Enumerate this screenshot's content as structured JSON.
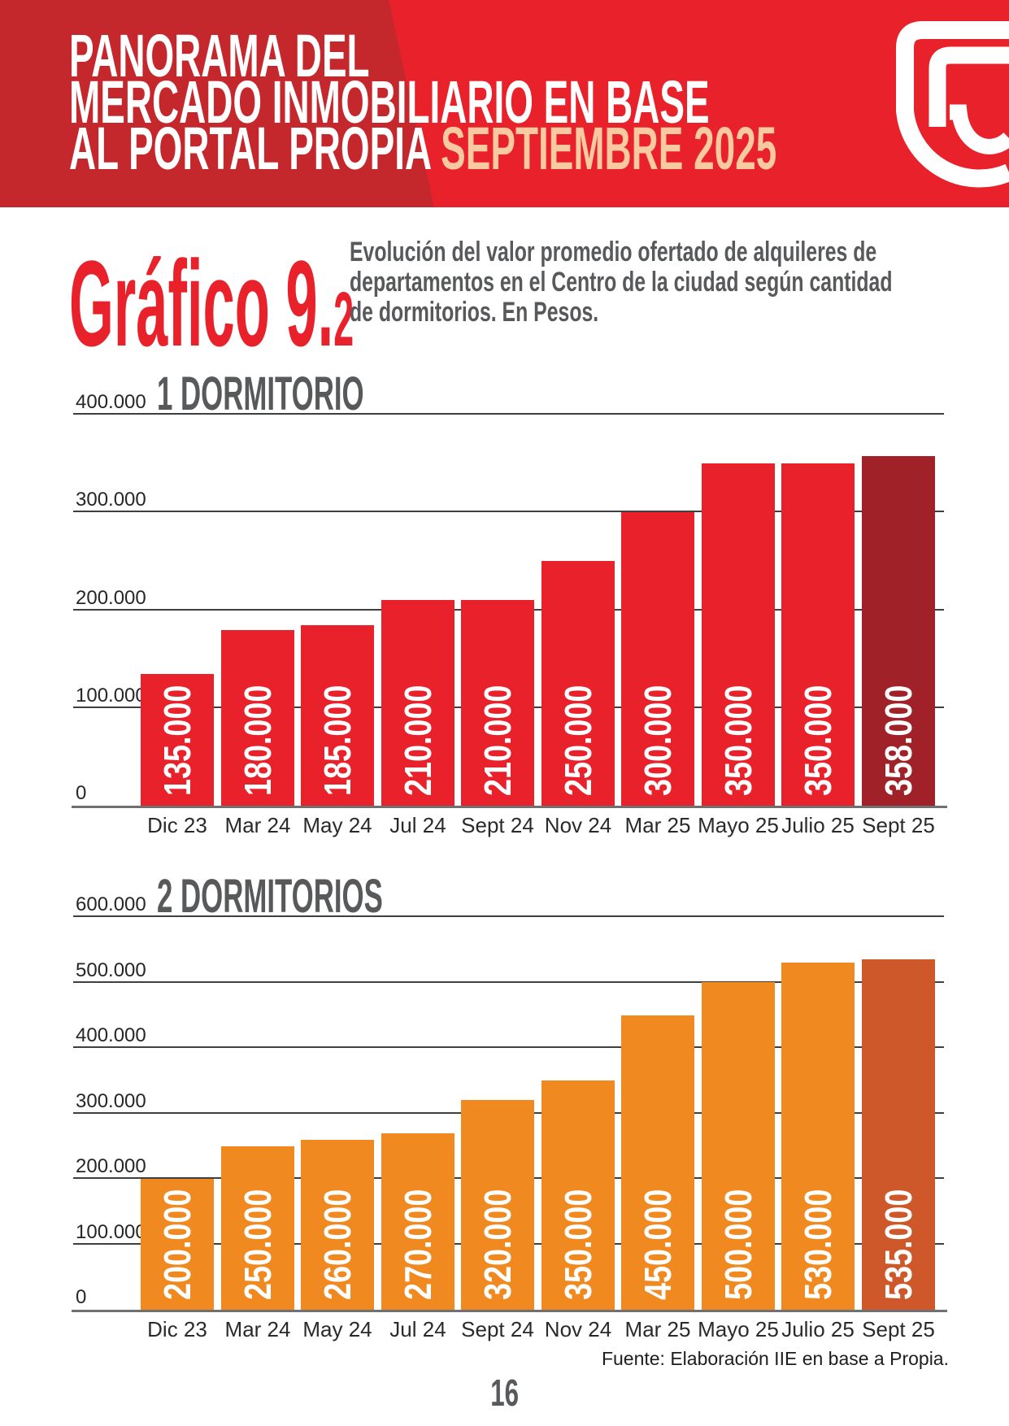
{
  "page": {
    "number": "16"
  },
  "colors": {
    "banner_red": "#E8212A",
    "banner_dark_red": "#C4272C",
    "accent_peach": "#F9C9A1",
    "heading_gray": "#58595B"
  },
  "header": {
    "line1": "PANORAMA DEL",
    "line2": "MERCADO INMOBILIARIO EN BASE",
    "line3": "AL PORTAL PROPIA ",
    "line3_accent": "SEPTIEMBRE 2025",
    "logo": "propia-brand-mark"
  },
  "intro": {
    "graph_label": "Gráfico 9.",
    "graph_label_sub": "2",
    "description_line1": "Evolución del valor promedio ofertado de alquileres de",
    "description_line2": "departamentos en el Centro de la ciudad según cantidad",
    "description_line3": "de dormitorios. En Pesos."
  },
  "source_note": "Fuente: Elaboración IIE en base a Propia.",
  "chart_data": [
    {
      "type": "bar",
      "title": "1 DORMITORIO",
      "categories": [
        "Dic 23",
        "Mar 24",
        "May 24",
        "Jul 24",
        "Sept 24",
        "Nov 24",
        "Mar 25",
        "Mayo 25",
        "Julio 25",
        "Sept 25"
      ],
      "values": [
        135000,
        180000,
        185000,
        210000,
        210000,
        250000,
        300000,
        350000,
        350000,
        358000
      ],
      "bar_labels": [
        "135.000",
        "180.000",
        "185.000",
        "210.000",
        "210.000",
        "250.000",
        "300.000",
        "350.000",
        "350.000",
        "358.000"
      ],
      "yticks": [
        {
          "label": "400.000",
          "value": 400000
        },
        {
          "label": "300.000",
          "value": 300000
        },
        {
          "label": "200.000",
          "value": 200000
        },
        {
          "label": "100.000",
          "value": 100000
        },
        {
          "label": "0",
          "value": 0
        }
      ],
      "ylim": [
        0,
        400000
      ],
      "grid": true,
      "legend": "none",
      "bar_color": "#E8212A",
      "highlight_last_color": "#A02127"
    },
    {
      "type": "bar",
      "title": "2 DORMITORIOS",
      "categories": [
        "Dic 23",
        "Mar 24",
        "May 24",
        "Jul 24",
        "Sept 24",
        "Nov 24",
        "Mar 25",
        "Mayo 25",
        "Julio 25",
        "Sept 25"
      ],
      "values": [
        200000,
        250000,
        260000,
        270000,
        320000,
        350000,
        450000,
        500000,
        530000,
        535000
      ],
      "bar_labels": [
        "200.000",
        "250.000",
        "260.000",
        "270.000",
        "320.000",
        "350.000",
        "450.000",
        "500.000",
        "530.000",
        "535.000"
      ],
      "yticks": [
        {
          "label": "600.000",
          "value": 600000
        },
        {
          "label": "500.000",
          "value": 500000
        },
        {
          "label": "400.000",
          "value": 400000
        },
        {
          "label": "300.000",
          "value": 300000
        },
        {
          "label": "200.000",
          "value": 200000
        },
        {
          "label": "100.000",
          "value": 100000
        },
        {
          "label": "0",
          "value": 0
        }
      ],
      "ylim": [
        0,
        600000
      ],
      "grid": true,
      "legend": "none",
      "bar_color": "#F0891F",
      "highlight_last_color": "#CE5829"
    }
  ]
}
